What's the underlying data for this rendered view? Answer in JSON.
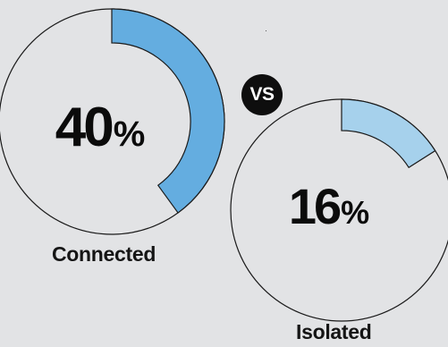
{
  "chart_data": [
    {
      "type": "pie",
      "label": "Connected",
      "value": 40,
      "value_text": "40",
      "unit": "%",
      "fill_color": "#64ade0",
      "track_color": "#1a1a1a"
    },
    {
      "type": "pie",
      "label": "Isolated",
      "value": 16,
      "value_text": "16",
      "unit": "%",
      "fill_color": "#a6d1ec",
      "track_color": "#1a1a1a"
    }
  ],
  "comparison_badge": "VS",
  "background_color": "#e2e3e5"
}
